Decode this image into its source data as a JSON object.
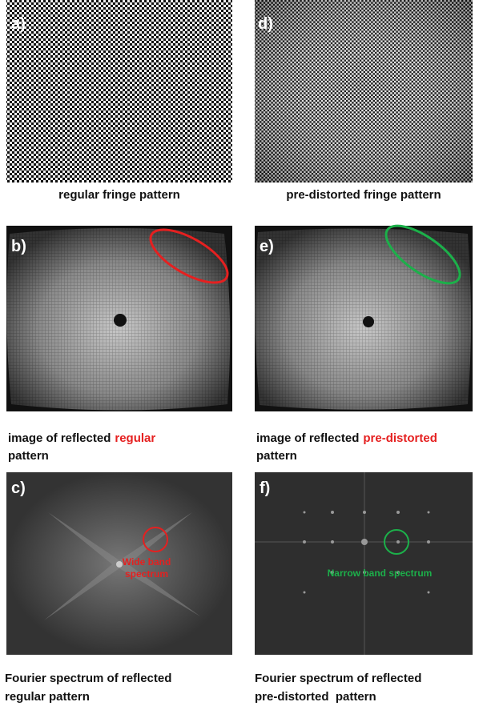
{
  "panels": {
    "a": {
      "label": "a)",
      "caption": "regular fringe pattern"
    },
    "d": {
      "label": "d)",
      "caption": "pre-distorted fringe pattern"
    },
    "b": {
      "label": "b)",
      "caption_start": "image of reflected",
      "caption_highlight": "regular",
      "caption_end": "pattern"
    },
    "e": {
      "label": "e)",
      "caption_start": "image of reflected",
      "caption_highlight": "pre-distorted",
      "caption_end": "pattern"
    },
    "c": {
      "label": "c)",
      "annotation": [
        "Wide band",
        "spectrum"
      ],
      "caption": [
        "Fourier spectrum of reflected",
        "regular pattern"
      ]
    },
    "f": {
      "label": "f)",
      "annotation": [
        "Narrow band spectrum"
      ],
      "caption": [
        "Fourier spectrum of reflected",
        "pre-distorted  pattern"
      ]
    }
  }
}
